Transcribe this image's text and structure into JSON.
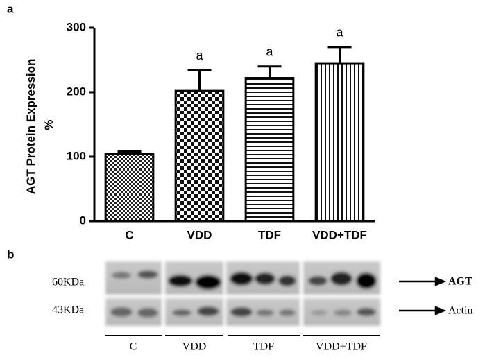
{
  "panel_labels": [
    "a",
    "b"
  ],
  "chart_data": {
    "type": "bar",
    "ylabel": [
      "AGT Protein Expression",
      "%"
    ],
    "categories": [
      "C",
      "VDD",
      "TDF",
      "VDD+TDF"
    ],
    "values": [
      104,
      202,
      222,
      244
    ],
    "errors": [
      4,
      32,
      18,
      26
    ],
    "annotations": [
      null,
      "a",
      "a",
      "a"
    ],
    "color": "#000000",
    "ylim": [
      0,
      300
    ],
    "yticks": [
      0,
      100,
      200,
      300
    ],
    "grid": false
  },
  "blot": {
    "markers": [
      "60KDa",
      "43KDa"
    ],
    "proteins": [
      "AGT",
      "Actin"
    ],
    "groups": [
      "C",
      "VDD",
      "TDF",
      "VDD+TDF"
    ]
  }
}
